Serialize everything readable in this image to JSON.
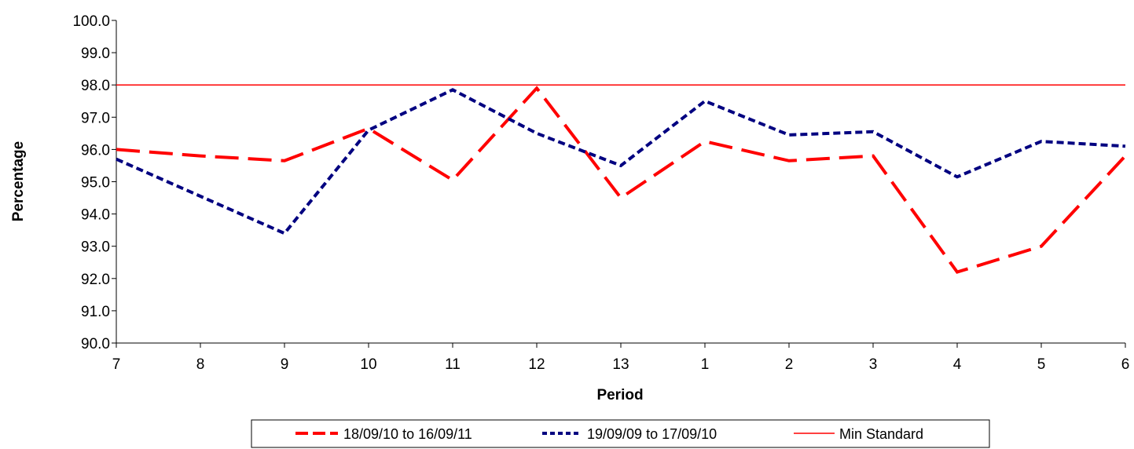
{
  "chart_data": {
    "type": "line",
    "title": "",
    "xlabel": "Period",
    "ylabel": "Percentage",
    "categories": [
      "7",
      "8",
      "9",
      "10",
      "11",
      "12",
      "13",
      "1",
      "2",
      "3",
      "4",
      "5",
      "6"
    ],
    "ylim": [
      90.0,
      100.0
    ],
    "yticks": [
      "90.0",
      "91.0",
      "92.0",
      "93.0",
      "94.0",
      "95.0",
      "96.0",
      "97.0",
      "98.0",
      "99.0",
      "100.0"
    ],
    "grid": false,
    "legend_position": "bottom",
    "series": [
      {
        "name": "18/09/10 to 16/09/11",
        "color": "#ff0000",
        "style": "long-dash",
        "values": [
          96.0,
          95.8,
          95.65,
          96.65,
          95.05,
          97.9,
          94.5,
          96.25,
          95.65,
          95.8,
          92.2,
          93.0,
          95.8
        ]
      },
      {
        "name": "19/09/09 to 17/09/10",
        "color": "#000080",
        "style": "short-dash",
        "values": [
          95.7,
          94.55,
          93.4,
          96.6,
          97.85,
          96.5,
          95.5,
          97.5,
          96.45,
          96.55,
          95.15,
          96.25,
          96.1
        ]
      },
      {
        "name": "Min Standard",
        "color": "#ff0000",
        "style": "solid",
        "values": [
          98.0,
          98.0,
          98.0,
          98.0,
          98.0,
          98.0,
          98.0,
          98.0,
          98.0,
          98.0,
          98.0,
          98.0,
          98.0
        ]
      }
    ]
  }
}
